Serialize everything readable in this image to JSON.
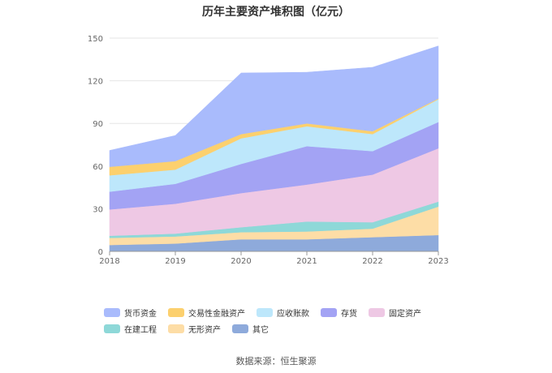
{
  "chart_data": {
    "type": "area",
    "stacked": true,
    "title": "历年主要资产堆积图（亿元）",
    "xlabel": "",
    "ylabel": "",
    "x": [
      "2018",
      "2019",
      "2020",
      "2021",
      "2022",
      "2023"
    ],
    "ylim": [
      0,
      150
    ],
    "yticks": [
      "0",
      "30",
      "60",
      "90",
      "120",
      "150"
    ],
    "grid": true,
    "legend_position": "bottom",
    "series": [
      {
        "name": "其它",
        "color": "#8eaadb",
        "values": [
          4.5,
          5.5,
          8.5,
          8.5,
          10.0,
          11.5
        ]
      },
      {
        "name": "无形资产",
        "color": "#fddda6",
        "values": [
          5.0,
          5.0,
          5.0,
          5.5,
          6.0,
          20.0
        ]
      },
      {
        "name": "在建工程",
        "color": "#8ed8d8",
        "values": [
          1.5,
          2.0,
          3.5,
          7.0,
          4.5,
          3.5
        ]
      },
      {
        "name": "固定资产",
        "color": "#eec8e4",
        "values": [
          18.5,
          21.0,
          24.0,
          26.0,
          33.5,
          37.5
        ]
      },
      {
        "name": "存货",
        "color": "#a3a3f4",
        "values": [
          12.5,
          14.0,
          20.5,
          27.0,
          16.5,
          18.5
        ]
      },
      {
        "name": "应收账款",
        "color": "#bde7fb",
        "values": [
          11.5,
          10.0,
          18.0,
          14.0,
          12.0,
          16.0
        ]
      },
      {
        "name": "交易性金融资产",
        "color": "#fcd06e",
        "values": [
          6.0,
          6.0,
          3.0,
          2.0,
          2.0,
          0.5
        ]
      },
      {
        "name": "货币资金",
        "color": "#a9bbfc",
        "values": [
          11.5,
          18.0,
          43.0,
          36.0,
          45.0,
          37.0
        ]
      }
    ],
    "legend_order": [
      "货币资金",
      "交易性金融资产",
      "应收账款",
      "存货",
      "固定资产",
      "在建工程",
      "无形资产",
      "其它"
    ]
  },
  "footer": {
    "source": "数据来源：恒生聚源"
  }
}
